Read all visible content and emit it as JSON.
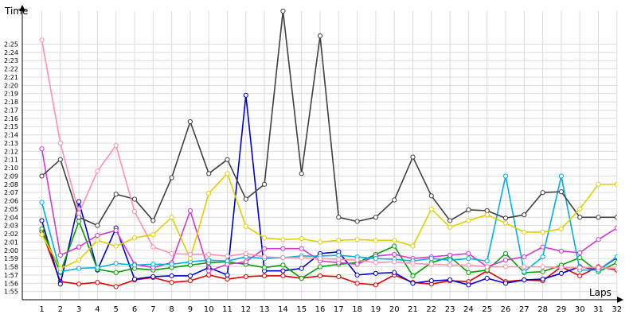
{
  "chart_data": {
    "type": "line",
    "xlabel": "Laps",
    "ylabel": "Time",
    "x": [
      1,
      2,
      3,
      4,
      5,
      6,
      7,
      8,
      9,
      10,
      11,
      12,
      13,
      14,
      15,
      16,
      17,
      18,
      19,
      20,
      21,
      22,
      23,
      24,
      25,
      26,
      27,
      28,
      29,
      30,
      31,
      32
    ],
    "ylim": [
      114,
      149
    ],
    "xlim": [
      0,
      32
    ],
    "grid": true,
    "legend": "none",
    "y_tick_labels": [
      "1:55",
      "1:56",
      "1:57",
      "1:58",
      "1:59",
      "2:00",
      "2:01",
      "2:02",
      "2:03",
      "2:04",
      "2:05",
      "2:06",
      "2:07",
      "2:08",
      "2:09",
      "2:10",
      "2:11",
      "2:12",
      "2:13",
      "2:14",
      "2:15",
      "2:16",
      "2:17",
      "2:18",
      "2:19",
      "2:20",
      "2:21",
      "2:22",
      "2:23",
      "2:24",
      "2:25"
    ],
    "y_tick_values": [
      115,
      116,
      117,
      118,
      119,
      120,
      121,
      122,
      123,
      124,
      125,
      126,
      127,
      128,
      129,
      130,
      131,
      132,
      133,
      134,
      135,
      136,
      137,
      138,
      139,
      140,
      141,
      142,
      143,
      144,
      145
    ],
    "x_tick_labels": [
      "1",
      "2",
      "3",
      "4",
      "5",
      "6",
      "7",
      "8",
      "9",
      "10",
      "11",
      "12",
      "13",
      "14",
      "15",
      "16",
      "17",
      "18",
      "19",
      "20",
      "21",
      "22",
      "23",
      "24",
      "25",
      "26",
      "27",
      "28",
      "29",
      "30",
      "31",
      "32"
    ],
    "series": [
      {
        "color": "#e00000",
        "values": [
          122.3,
          116.2,
          115.9,
          116.1,
          115.6,
          116.4,
          116.7,
          116.1,
          116.3,
          117.0,
          116.5,
          116.8,
          116.9,
          116.9,
          116.6,
          116.9,
          116.8,
          116.0,
          115.8,
          117.0,
          116.1,
          115.9,
          116.3,
          116.2,
          117.5,
          116.2,
          116.4,
          116.3,
          118.0,
          116.9,
          118.0,
          117.6
        ]
      },
      {
        "color": "#0000cc",
        "values": [
          123.6,
          115.9,
          125.9,
          117.6,
          122.7,
          116.5,
          116.8,
          116.9,
          116.9,
          117.9,
          117.0,
          138.8,
          117.5,
          117.5,
          117.8,
          119.6,
          119.8,
          117.0,
          117.2,
          117.3,
          116.0,
          116.3,
          116.4,
          115.8,
          116.6,
          116.0,
          116.4,
          116.5,
          117.2,
          118.0,
          117.6,
          119.1
        ]
      },
      {
        "color": "#00a000",
        "values": [
          122.6,
          117.3,
          123.5,
          117.7,
          117.3,
          117.8,
          117.6,
          117.9,
          118.2,
          118.5,
          118.6,
          118.3,
          117.9,
          118.2,
          116.6,
          118.0,
          118.3,
          118.5,
          119.5,
          120.5,
          116.9,
          118.5,
          119.2,
          117.3,
          117.6,
          119.6,
          117.3,
          117.4,
          118.2,
          119.1,
          117.4,
          118.5
        ]
      },
      {
        "color": "#d03ad0",
        "values": [
          132.3,
          119.4,
          120.4,
          121.8,
          122.4,
          118.3,
          117.9,
          118.5,
          124.8,
          117.5,
          118.3,
          118.6,
          120.2,
          120.2,
          120.2,
          118.7,
          118.5,
          118.3,
          119.3,
          119.5,
          119.0,
          119.2,
          119.4,
          119.6,
          118.0,
          118.8,
          119.2,
          120.4,
          119.9,
          119.7,
          121.3,
          122.7
        ]
      },
      {
        "color": "#00b0e0",
        "values": [
          125.8,
          117.4,
          117.8,
          117.9,
          118.4,
          118.2,
          118.3,
          118.3,
          118.6,
          118.8,
          118.7,
          119.2,
          119.0,
          119.1,
          119.3,
          119.3,
          119.4,
          119.2,
          119.0,
          118.9,
          118.7,
          119.0,
          118.8,
          119.0,
          118.7,
          129.0,
          117.4,
          119.2,
          129.0,
          117.6,
          117.6,
          119.2
        ]
      },
      {
        "color": "#404040",
        "values": [
          129.0,
          131.0,
          124.0,
          123.0,
          126.8,
          126.2,
          123.6,
          128.8,
          135.6,
          129.3,
          131.0,
          126.2,
          128.0,
          149.0,
          129.3,
          146.0,
          124.0,
          123.5,
          124.0,
          126.1,
          131.3,
          126.6,
          123.6,
          124.9,
          124.8,
          123.9,
          124.3,
          127.0,
          127.1,
          124.0,
          124.0,
          124.0
        ]
      },
      {
        "color": "#e0d000",
        "values": [
          121.9,
          117.8,
          118.8,
          121.2,
          120.5,
          121.5,
          121.9,
          124.0,
          119.0,
          126.9,
          129.3,
          122.9,
          121.5,
          121.3,
          121.4,
          121.0,
          121.2,
          121.3,
          121.2,
          121.2,
          120.5,
          125.0,
          122.8,
          123.6,
          124.3,
          123.3,
          122.2,
          122.2,
          122.6,
          125.0,
          128.0,
          128.0
        ]
      },
      {
        "color": "#ff90b0",
        "values": [
          145.5,
          133.0,
          124.5,
          129.6,
          132.7,
          124.7,
          120.4,
          119.6,
          119.5,
          119.5,
          119.3,
          119.6,
          119.2,
          119.1,
          119.1,
          119.0,
          118.9,
          118.8,
          118.5,
          118.6,
          118.4,
          118.3,
          118.2,
          118.2,
          118.0,
          118.0,
          118.0,
          118.0,
          117.9,
          117.9,
          117.9,
          117.8
        ]
      }
    ]
  }
}
